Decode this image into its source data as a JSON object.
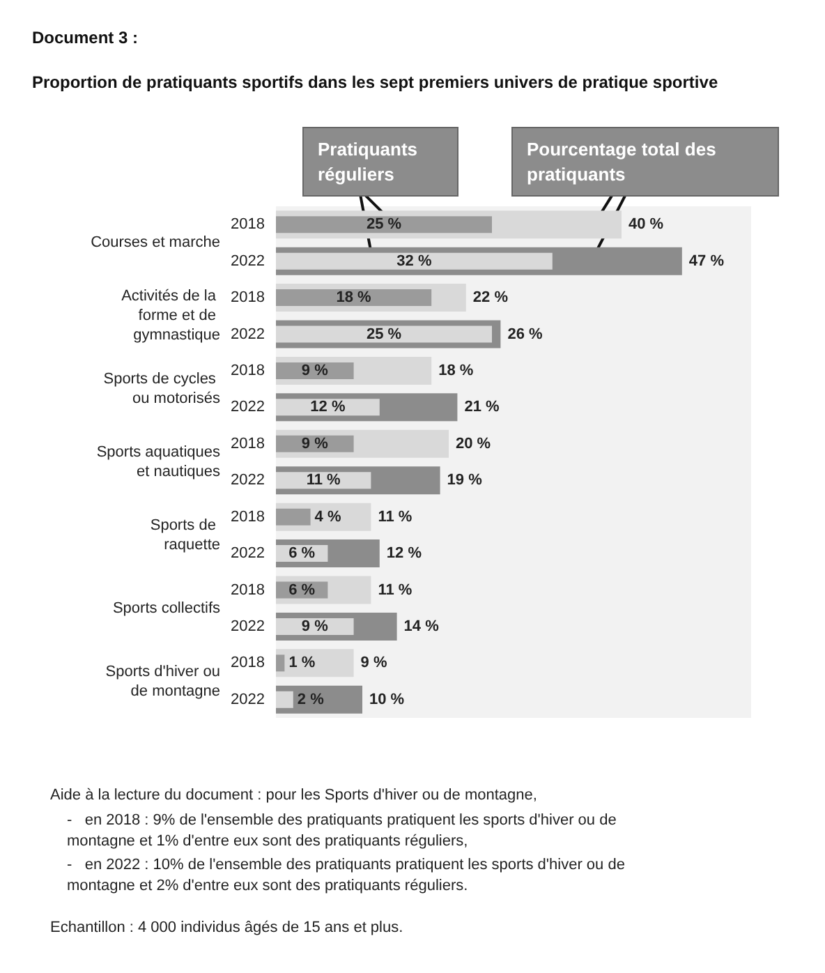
{
  "chart_data": {
    "type": "bar",
    "orientation": "horizontal",
    "title": "Document 3 :",
    "subtitle": "Proportion de pratiquants sportifs dans les sept premiers univers de pratique sportive",
    "categories": [
      "2018",
      "2022",
      "2018",
      "2022",
      "2018",
      "2022",
      "2018",
      "2022",
      "2018",
      "2022",
      "2018",
      "2022",
      "2018",
      "2022"
    ],
    "series": [
      {
        "name": "Pratiquants réguliers",
        "colors": [
          "#9b9b9b",
          "#d9d9d9",
          "#9b9b9b",
          "#d9d9d9",
          "#9b9b9b",
          "#d9d9d9",
          "#9b9b9b",
          "#d9d9d9",
          "#9b9b9b",
          "#d9d9d9",
          "#9b9b9b",
          "#d9d9d9",
          "#9b9b9b",
          "#d9d9d9"
        ],
        "values": [
          25,
          32,
          18,
          25,
          9,
          12,
          9,
          11,
          4,
          6,
          6,
          9,
          1,
          2
        ],
        "value_labels": [
          "25 %",
          "32 %",
          "18 %",
          "25 %",
          "9 %",
          "12 %",
          "9 %",
          "11 %",
          "4 %",
          "6 %",
          "6 %",
          "9 %",
          "1 %",
          "2 %"
        ]
      },
      {
        "name": "Pourcentage total des pratiquants",
        "colors": [
          "#d9d9d9",
          "#8c8c8c",
          "#d9d9d9",
          "#8c8c8c",
          "#d9d9d9",
          "#8c8c8c",
          "#d9d9d9",
          "#8c8c8c",
          "#d9d9d9",
          "#8c8c8c",
          "#d9d9d9",
          "#8c8c8c",
          "#d9d9d9",
          "#8c8c8c"
        ],
        "values": [
          40,
          47,
          22,
          26,
          18,
          21,
          20,
          19,
          11,
          12,
          11,
          14,
          9,
          10
        ],
        "value_labels": [
          "40 %",
          "47 %",
          "22 %",
          "26 %",
          "18 %",
          "21 %",
          "20 %",
          "19 %",
          "11 %",
          "12 %",
          "11 %",
          "14 %",
          "9 %",
          "10 %"
        ]
      }
    ],
    "xlim": [
      0,
      55
    ],
    "tick_labels": "y",
    "legend": "top",
    "grid": false,
    "annotations": [
      "Courses et marche",
      "Activités de la forme et de gymnastique",
      "Sports de cycles ou motorisés",
      "Sports aquatiques et nautiques",
      "Sports de raquette",
      "Sports collectifs",
      "Sports d'hiver ou de montagne",
      "Aide à la lecture du document : pour les Sports d'hiver ou de montagne,",
      "-   en 2018 : 9% de l'ensemble des pratiquants pratiquent les sports d'hiver ou de montagne et 1% d'entre eux sont des pratiquants réguliers,",
      "-   en 2022 : 10% de l'ensemble des pratiquants pratiquent les sports d'hiver ou de montagne et 2% d'entre eux sont des pratiquants réguliers.",
      "Echantillon : 4 000 individus âgés de 15 ans et plus."
    ]
  }
}
